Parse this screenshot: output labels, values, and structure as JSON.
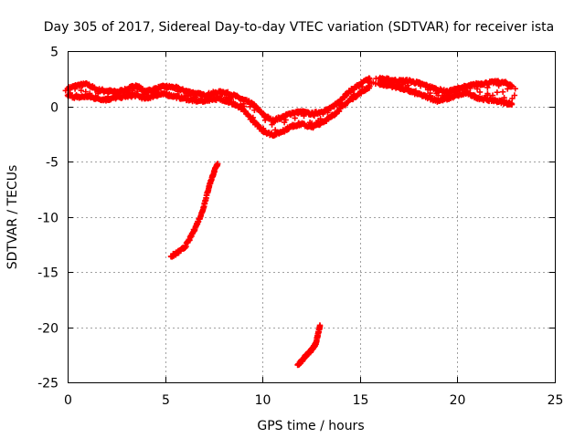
{
  "chart_data": {
    "type": "scatter",
    "title": "Day 305 of 2017, Sidereal Day-to-day VTEC variation (SDTVAR) for receiver ista",
    "xlabel": "GPS time / hours",
    "ylabel": "SDTVAR / TECUs",
    "xlim": [
      0,
      25
    ],
    "ylim": [
      -25,
      5
    ],
    "xticks": [
      0,
      5,
      10,
      15,
      20,
      25
    ],
    "yticks": [
      5,
      0,
      -5,
      -10,
      -15,
      -20,
      -25
    ],
    "grid": true,
    "marker": "plus",
    "color": "#ff0000",
    "series": [
      {
        "name": "band-upper",
        "x": [
          0.0,
          0.5,
          1.0,
          1.5,
          2.0,
          2.5,
          3.0,
          3.5,
          4.0,
          4.5,
          5.0,
          5.5,
          6.0,
          6.5,
          7.0,
          7.5,
          8.0,
          8.5,
          9.0,
          9.5,
          10.0,
          10.5,
          11.0,
          11.5,
          12.0,
          12.5,
          13.0,
          13.5,
          14.0,
          14.5,
          15.0,
          15.5
        ],
        "y": [
          1.6,
          1.9,
          2.0,
          1.5,
          1.4,
          1.3,
          1.5,
          1.9,
          1.3,
          1.6,
          1.8,
          1.7,
          1.4,
          1.2,
          1.0,
          1.2,
          1.3,
          1.0,
          0.6,
          0.2,
          -0.7,
          -1.3,
          -1.0,
          -0.6,
          -0.5,
          -0.7,
          -0.5,
          -0.2,
          0.6,
          1.4,
          2.0,
          2.5
        ]
      },
      {
        "name": "band-lower",
        "x": [
          0.0,
          0.5,
          1.0,
          1.5,
          2.0,
          2.5,
          3.0,
          3.5,
          4.0,
          4.5,
          5.0,
          5.5,
          6.0,
          6.5,
          7.0,
          7.5,
          8.0,
          8.5,
          9.0,
          9.5,
          10.0,
          10.5,
          11.0,
          11.5,
          12.0,
          12.5,
          13.0,
          13.5,
          14.0,
          14.5,
          15.0,
          15.5
        ],
        "y": [
          1.0,
          0.8,
          0.9,
          0.7,
          0.6,
          0.8,
          0.9,
          1.0,
          0.7,
          1.0,
          1.1,
          0.9,
          0.7,
          0.5,
          0.5,
          0.7,
          0.6,
          0.2,
          -0.3,
          -1.3,
          -2.2,
          -2.6,
          -2.3,
          -1.8,
          -1.6,
          -1.9,
          -1.5,
          -1.0,
          -0.2,
          0.6,
          1.2,
          1.8
        ]
      },
      {
        "name": "afternoon-upper",
        "x": [
          16.0,
          16.5,
          17.0,
          17.5,
          18.0,
          18.5,
          19.0,
          19.5,
          20.0,
          20.5,
          21.0,
          21.5,
          22.0,
          22.5,
          22.8
        ],
        "y": [
          2.5,
          2.4,
          2.3,
          2.3,
          2.1,
          1.8,
          1.5,
          1.3,
          1.6,
          1.8,
          2.0,
          2.1,
          2.2,
          2.1,
          1.8
        ]
      },
      {
        "name": "afternoon-lower",
        "x": [
          16.0,
          16.5,
          17.0,
          17.5,
          18.0,
          18.5,
          19.0,
          19.5,
          20.0,
          20.5,
          21.0,
          21.5,
          22.0,
          22.5,
          22.8
        ],
        "y": [
          2.0,
          1.9,
          1.7,
          1.4,
          1.1,
          0.8,
          0.5,
          0.7,
          1.0,
          1.2,
          0.8,
          0.6,
          0.5,
          0.3,
          0.2
        ]
      },
      {
        "name": "arc-1",
        "x": [
          5.3,
          5.6,
          6.0,
          6.3,
          6.6,
          6.9,
          7.1,
          7.3,
          7.5,
          7.7
        ],
        "y": [
          -13.6,
          -13.3,
          -12.8,
          -11.9,
          -10.8,
          -9.6,
          -8.3,
          -7.0,
          -6.0,
          -5.2
        ]
      },
      {
        "name": "arc-2",
        "x": [
          11.8,
          12.0,
          12.2,
          12.4,
          12.6,
          12.75,
          12.85,
          12.95
        ],
        "y": [
          -23.4,
          -23.1,
          -22.6,
          -22.3,
          -21.9,
          -21.4,
          -20.6,
          -19.9
        ]
      }
    ]
  }
}
